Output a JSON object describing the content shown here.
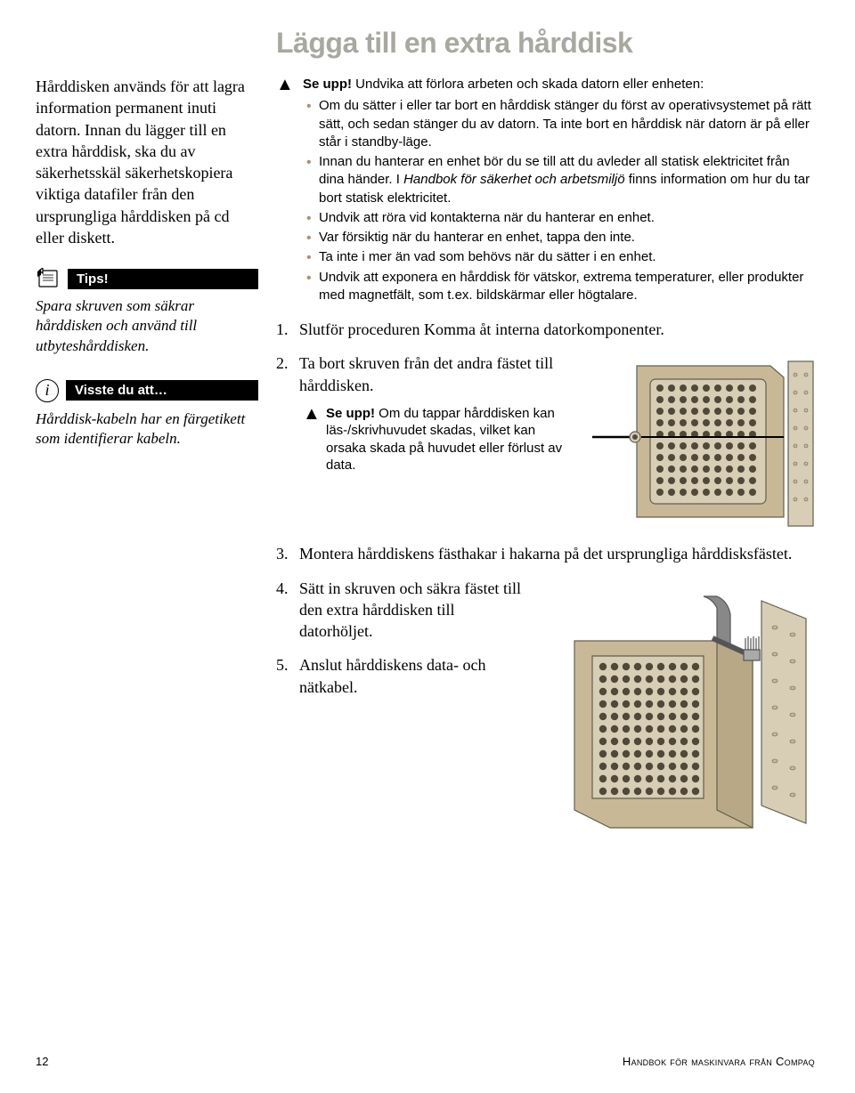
{
  "title": "Lägga till en extra hårddisk",
  "sidebar": {
    "intro": "Hårddisken används för att lagra information permanent inuti datorn. Innan du lägger till en extra hårddisk, ska du av säkerhetsskäl säkerhetskopiera viktiga datafiler från den ursprungliga hårddisken på cd eller diskett.",
    "tips_label": "Tips!",
    "tips_body": "Spara skruven som säkrar hårddisken och använd till utbyteshårddisken.",
    "didyouknow_label": "Visste du att…",
    "didyouknow_body": "Hårddisk-kabeln har en färgetikett som identifierar kabeln."
  },
  "warning": {
    "title": "Se upp!",
    "lead": " Undvika att förlora arbeten och skada datorn eller enheten:",
    "bullets": [
      "Om du sätter i eller tar bort en hårddisk stänger du först av operativsystemet på rätt sätt, och sedan stänger du av datorn. Ta inte bort en hårddisk när datorn är på eller står i standby-läge.",
      "Innan du hanterar en enhet bör du se till att du avleder all statisk elektricitet från dina händer. I <span class=\"italic\">Handbok för säkerhet och arbetsmiljö</span> finns information om hur du tar bort statisk elektricitet.",
      "Undvik att röra vid kontakterna när du hanterar en enhet.",
      "Var försiktig när du hanterar en enhet, tappa den inte.",
      "Ta inte i mer än vad som behövs när du sätter i en enhet.",
      "Undvik att exponera en hårddisk för vätskor, extrema temperaturer, eller produkter med magnetfält, som t.ex. bildskärmar eller högtalare."
    ]
  },
  "steps": {
    "s1": "Slutför proceduren Komma åt interna datorkomponenter.",
    "s2": "Ta bort skruven från det andra fästet till hårddisken.",
    "s2_warning_title": "Se upp!",
    "s2_warning_body": " Om du tappar hårddisken kan läs-/skrivhuvudet skadas, vilket kan orsaka skada på huvudet eller förlust av data.",
    "s3": "Montera hårddiskens fästhakar i hakarna på det ursprungliga hårddisksfästet.",
    "s4": "Sätt in skruven och säkra fästet till den extra hårddisken till datorhöljet.",
    "s5": "Anslut hårddiskens data- och nätkabel."
  },
  "footer": {
    "page": "12",
    "book": "Handbok för maskinvara från Compaq"
  },
  "colors": {
    "title_gray": "#a8a8a0",
    "bullet_tan": "#b0906a",
    "illus_fill": "#c9b896",
    "illus_stroke": "#606050"
  }
}
